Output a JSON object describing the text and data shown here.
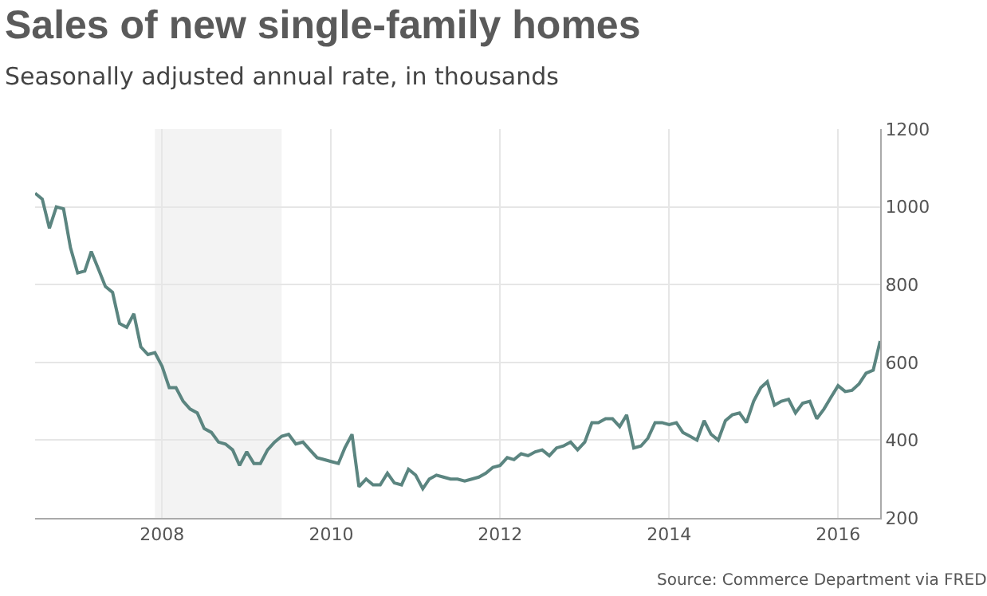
{
  "chart_data": {
    "type": "line",
    "title": "Sales of new single-family homes",
    "subtitle": "Seasonally adjusted annual rate, in thousands",
    "annotations": [
      "Source: Commerce Department via FRED"
    ],
    "x": [
      "2006-07",
      "2006-08",
      "2006-09",
      "2006-10",
      "2006-11",
      "2006-12",
      "2007-01",
      "2007-02",
      "2007-03",
      "2007-04",
      "2007-05",
      "2007-06",
      "2007-07",
      "2007-08",
      "2007-09",
      "2007-10",
      "2007-11",
      "2007-12",
      "2008-01",
      "2008-02",
      "2008-03",
      "2008-04",
      "2008-05",
      "2008-06",
      "2008-07",
      "2008-08",
      "2008-09",
      "2008-10",
      "2008-11",
      "2008-12",
      "2009-01",
      "2009-02",
      "2009-03",
      "2009-04",
      "2009-05",
      "2009-06",
      "2009-07",
      "2009-08",
      "2009-09",
      "2009-10",
      "2009-11",
      "2009-12",
      "2010-01",
      "2010-02",
      "2010-03",
      "2010-04",
      "2010-05",
      "2010-06",
      "2010-07",
      "2010-08",
      "2010-09",
      "2010-10",
      "2010-11",
      "2010-12",
      "2011-01",
      "2011-02",
      "2011-03",
      "2011-04",
      "2011-05",
      "2011-06",
      "2011-07",
      "2011-08",
      "2011-09",
      "2011-10",
      "2011-11",
      "2011-12",
      "2012-01",
      "2012-02",
      "2012-03",
      "2012-04",
      "2012-05",
      "2012-06",
      "2012-07",
      "2012-08",
      "2012-09",
      "2012-10",
      "2012-11",
      "2012-12",
      "2013-01",
      "2013-02",
      "2013-03",
      "2013-04",
      "2013-05",
      "2013-06",
      "2013-07",
      "2013-08",
      "2013-09",
      "2013-10",
      "2013-11",
      "2013-12",
      "2014-01",
      "2014-02",
      "2014-03",
      "2014-04",
      "2014-05",
      "2014-06",
      "2014-07",
      "2014-08",
      "2014-09",
      "2014-10",
      "2014-11",
      "2014-12",
      "2015-01",
      "2015-02",
      "2015-03",
      "2015-04",
      "2015-05",
      "2015-06",
      "2015-07",
      "2015-08",
      "2015-09",
      "2015-10",
      "2015-11",
      "2015-12",
      "2016-01",
      "2016-02",
      "2016-03",
      "2016-04",
      "2016-05",
      "2016-06",
      "2016-07"
    ],
    "series": [
      {
        "color": "#5b8580",
        "values": [
          1035,
          1020,
          945,
          1000,
          995,
          895,
          830,
          835,
          885,
          840,
          795,
          780,
          700,
          690,
          725,
          640,
          620,
          625,
          590,
          535,
          535,
          500,
          480,
          470,
          430,
          420,
          395,
          390,
          375,
          335,
          370,
          340,
          340,
          375,
          395,
          410,
          415,
          390,
          395,
          375,
          355,
          350,
          345,
          340,
          380,
          415,
          280,
          300,
          285,
          285,
          315,
          290,
          285,
          325,
          310,
          275,
          300,
          310,
          305,
          300,
          300,
          295,
          300,
          305,
          315,
          330,
          335,
          355,
          350,
          365,
          360,
          370,
          375,
          360,
          380,
          385,
          395,
          375,
          395,
          445,
          445,
          455,
          455,
          435,
          465,
          380,
          385,
          405,
          445,
          445,
          440,
          445,
          420,
          410,
          400,
          450,
          415,
          400,
          450,
          465,
          470,
          445,
          500,
          535,
          550,
          490,
          500,
          505,
          470,
          495,
          500,
          455,
          480,
          510,
          540,
          525,
          528,
          545,
          572,
          580,
          655
        ]
      }
    ],
    "xlim": [
      "2006-07",
      "2016-07"
    ],
    "xticks": [
      {
        "value": "2008",
        "label": "2008"
      },
      {
        "value": "2010",
        "label": "2010"
      },
      {
        "value": "2012",
        "label": "2012"
      },
      {
        "value": "2014",
        "label": "2014"
      },
      {
        "value": "2016",
        "label": "2016"
      }
    ],
    "ylim": [
      200,
      1200
    ],
    "yticks": [
      200,
      400,
      600,
      800,
      1000,
      1200
    ],
    "bands": [
      {
        "axis": "x",
        "from": "2007-12",
        "to": "2009-06",
        "color": "#f3f3f3"
      }
    ],
    "grid": true,
    "marker": "none",
    "line_style": "solid"
  }
}
